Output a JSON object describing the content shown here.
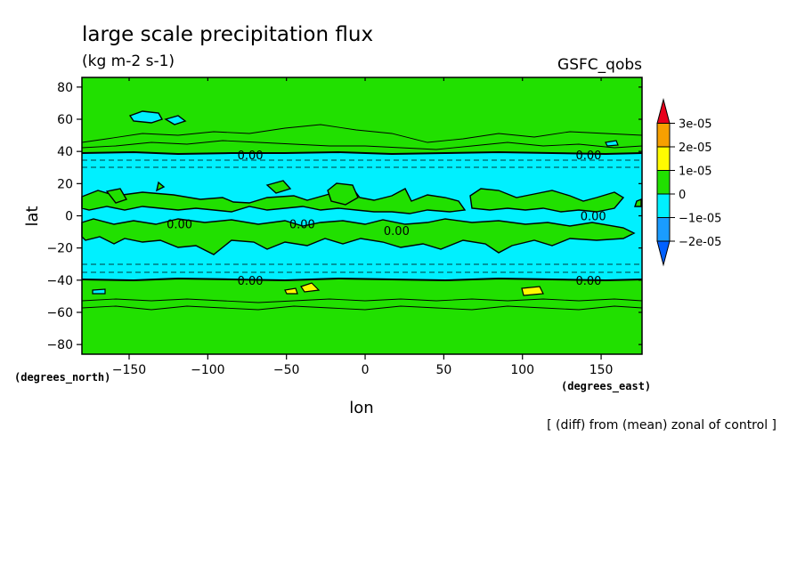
{
  "chart_data": {
    "type": "contour",
    "title": "large scale precipitation flux",
    "units": "(kg m-2 s-1)",
    "model": "GSFC_qobs",
    "xlabel": "lon",
    "ylabel": "lat",
    "x_unit_label": "(degrees_east)",
    "y_unit_label": "(degrees_north)",
    "xlim": [
      -180,
      176
    ],
    "ylim": [
      -86,
      86
    ],
    "x_ticks": [
      -150,
      -100,
      -50,
      0,
      50,
      100,
      150
    ],
    "y_ticks": [
      80,
      60,
      40,
      20,
      0,
      -20,
      -40,
      -60,
      -80
    ],
    "x_tick_labels": [
      "−150",
      "−100",
      "−50",
      "0",
      "50",
      "100",
      "150"
    ],
    "y_tick_labels": [
      "80",
      "60",
      "40",
      "20",
      "0",
      "−20",
      "−40",
      "−60",
      "−80"
    ],
    "bands": [
      {
        "lat_min": 40,
        "lat_max": 86,
        "class": "0 to 1e-05"
      },
      {
        "lat_min": -40,
        "lat_max": 40,
        "class": "-1e-05 to 0"
      },
      {
        "lat_min": -86,
        "lat_max": -40,
        "class": "0 to 1e-05"
      }
    ],
    "contour_labels": [
      {
        "text": "0.00",
        "lon": -73,
        "lat": 38
      },
      {
        "text": "0.00",
        "lon": 142,
        "lat": 38
      },
      {
        "text": "0.00",
        "lon": -118,
        "lat": -5
      },
      {
        "text": "0.00",
        "lon": -40,
        "lat": -5
      },
      {
        "text": "0.00",
        "lon": 20,
        "lat": -9
      },
      {
        "text": "0.00",
        "lon": 145,
        "lat": 0
      },
      {
        "text": "0.00",
        "lon": -73,
        "lat": -40
      },
      {
        "text": "0.00",
        "lon": 142,
        "lat": -40
      }
    ],
    "colorbar": {
      "levels": [
        "3e-05",
        "2e-05",
        "1e-05",
        "0",
        "−1e-05",
        "−2e-05"
      ],
      "colors": [
        "#e8001b",
        "#f7a000",
        "#fffb00",
        "#21e000",
        "#00f0ff",
        "#1a9cff",
        "#0060ff"
      ]
    },
    "footnote": "[ (diff) from (mean) zonal of control ]"
  }
}
